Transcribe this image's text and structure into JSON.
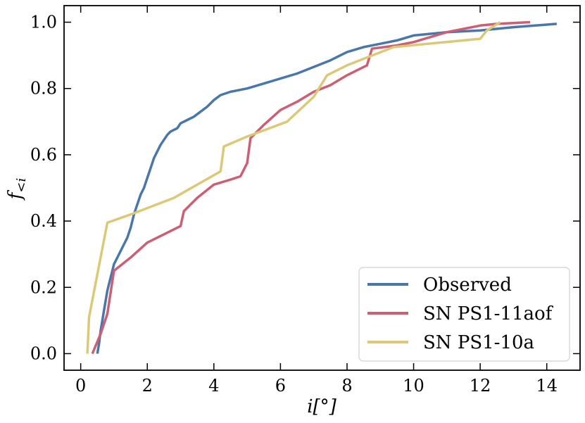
{
  "chart_data": {
    "type": "line",
    "title": "",
    "xlabel": "i[°]",
    "ylabel": "f<i",
    "xlim": [
      -0.5,
      15.0
    ],
    "ylim": [
      -0.05,
      1.05
    ],
    "xticks": [
      0,
      2,
      4,
      6,
      8,
      10,
      12,
      14
    ],
    "yticks": [
      0.0,
      0.2,
      0.4,
      0.6,
      0.8,
      1.0
    ],
    "xtick_labels": [
      "0",
      "2",
      "4",
      "6",
      "8",
      "10",
      "12",
      "14"
    ],
    "ytick_labels": [
      "0.0",
      "0.2",
      "0.4",
      "0.6",
      "0.8",
      "1.0"
    ],
    "grid": false,
    "legend_position": "bottom-right",
    "series": [
      {
        "name": "Observed",
        "color": "#4a77aa",
        "points": [
          [
            0.5,
            0.0
          ],
          [
            0.55,
            0.03
          ],
          [
            0.6,
            0.07
          ],
          [
            0.65,
            0.1
          ],
          [
            0.7,
            0.13
          ],
          [
            0.75,
            0.16
          ],
          [
            0.8,
            0.19
          ],
          [
            0.85,
            0.21
          ],
          [
            0.9,
            0.23
          ],
          [
            0.95,
            0.25
          ],
          [
            1.0,
            0.27
          ],
          [
            1.1,
            0.29
          ],
          [
            1.2,
            0.31
          ],
          [
            1.3,
            0.33
          ],
          [
            1.4,
            0.35
          ],
          [
            1.5,
            0.38
          ],
          [
            1.6,
            0.42
          ],
          [
            1.7,
            0.45
          ],
          [
            1.8,
            0.48
          ],
          [
            1.9,
            0.5
          ],
          [
            2.0,
            0.53
          ],
          [
            2.1,
            0.56
          ],
          [
            2.2,
            0.59
          ],
          [
            2.3,
            0.61
          ],
          [
            2.4,
            0.63
          ],
          [
            2.5,
            0.645
          ],
          [
            2.6,
            0.66
          ],
          [
            2.7,
            0.67
          ],
          [
            2.9,
            0.68
          ],
          [
            3.0,
            0.695
          ],
          [
            3.2,
            0.705
          ],
          [
            3.4,
            0.715
          ],
          [
            3.6,
            0.73
          ],
          [
            3.8,
            0.745
          ],
          [
            4.0,
            0.765
          ],
          [
            4.2,
            0.78
          ],
          [
            4.5,
            0.79
          ],
          [
            5.0,
            0.8
          ],
          [
            5.5,
            0.815
          ],
          [
            6.0,
            0.83
          ],
          [
            6.5,
            0.845
          ],
          [
            7.0,
            0.865
          ],
          [
            7.5,
            0.885
          ],
          [
            8.0,
            0.91
          ],
          [
            8.5,
            0.925
          ],
          [
            9.0,
            0.935
          ],
          [
            9.5,
            0.945
          ],
          [
            10.0,
            0.96
          ],
          [
            11.0,
            0.97
          ],
          [
            12.0,
            0.975
          ],
          [
            13.0,
            0.985
          ],
          [
            14.3,
            0.995
          ]
        ]
      },
      {
        "name": "SN PS1-11aof",
        "color": "#cc5f73",
        "points": [
          [
            0.35,
            0.0
          ],
          [
            0.6,
            0.06
          ],
          [
            0.8,
            0.12
          ],
          [
            1.0,
            0.25
          ],
          [
            1.5,
            0.29
          ],
          [
            2.0,
            0.335
          ],
          [
            2.5,
            0.36
          ],
          [
            3.0,
            0.385
          ],
          [
            3.1,
            0.43
          ],
          [
            3.5,
            0.47
          ],
          [
            4.0,
            0.51
          ],
          [
            4.5,
            0.525
          ],
          [
            4.8,
            0.535
          ],
          [
            5.0,
            0.575
          ],
          [
            5.1,
            0.65
          ],
          [
            5.5,
            0.69
          ],
          [
            6.0,
            0.735
          ],
          [
            6.5,
            0.76
          ],
          [
            7.0,
            0.79
          ],
          [
            7.5,
            0.81
          ],
          [
            8.0,
            0.84
          ],
          [
            8.6,
            0.87
          ],
          [
            8.75,
            0.92
          ],
          [
            9.5,
            0.93
          ],
          [
            10.0,
            0.94
          ],
          [
            10.5,
            0.955
          ],
          [
            11.0,
            0.97
          ],
          [
            11.5,
            0.98
          ],
          [
            12.0,
            0.99
          ],
          [
            12.5,
            0.995
          ],
          [
            13.5,
            1.0
          ]
        ]
      },
      {
        "name": "SN PS1-10a",
        "color": "#dcc978",
        "points": [
          [
            0.2,
            0.0
          ],
          [
            0.25,
            0.11
          ],
          [
            0.8,
            0.395
          ],
          [
            1.5,
            0.42
          ],
          [
            2.8,
            0.47
          ],
          [
            4.2,
            0.55
          ],
          [
            4.3,
            0.625
          ],
          [
            5.0,
            0.655
          ],
          [
            6.2,
            0.7
          ],
          [
            7.0,
            0.775
          ],
          [
            7.4,
            0.84
          ],
          [
            8.0,
            0.87
          ],
          [
            9.4,
            0.925
          ],
          [
            12.0,
            0.95
          ],
          [
            12.2,
            0.975
          ],
          [
            12.6,
            1.0
          ]
        ]
      }
    ]
  }
}
